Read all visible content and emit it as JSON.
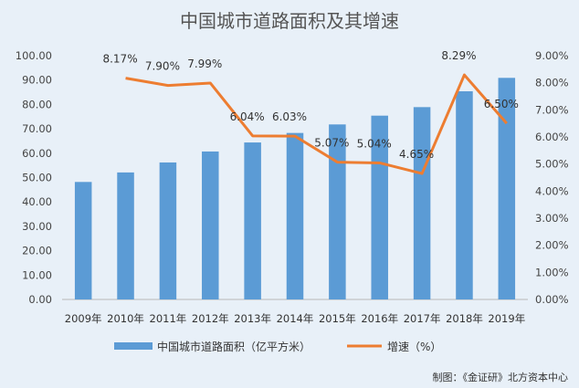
{
  "chart_data": {
    "type": "bar",
    "title": "中国城市道路面积及其增速",
    "categories": [
      "2009年",
      "2010年",
      "2011年",
      "2012年",
      "2013年",
      "2014年",
      "2015年",
      "2016年",
      "2017年",
      "2018年",
      "2019年"
    ],
    "series": [
      {
        "name": "中国城市道路面积（亿平方米）",
        "type": "bar",
        "axis": "left",
        "color": "#5b9bd5",
        "values": [
          48.2,
          52.1,
          56.2,
          60.7,
          64.4,
          68.3,
          71.8,
          75.4,
          78.9,
          85.4,
          90.9
        ]
      },
      {
        "name": "增速（%）",
        "type": "line",
        "axis": "right",
        "color": "#ed7d31",
        "values": [
          null,
          8.17,
          7.9,
          7.99,
          6.04,
          6.03,
          5.07,
          5.04,
          4.65,
          8.29,
          6.5
        ],
        "labels": [
          "",
          "8.17%",
          "7.90%",
          "7.99%",
          "6.04%",
          "6.03%",
          "5.07%",
          "5.04%",
          "4.65%",
          "8.29%",
          "6.50%"
        ]
      }
    ],
    "y_left": {
      "range": [
        0,
        100
      ],
      "ticks": [
        "0.00",
        "10.00",
        "20.00",
        "30.00",
        "40.00",
        "50.00",
        "60.00",
        "70.00",
        "80.00",
        "90.00",
        "100.00"
      ]
    },
    "y_right": {
      "range": [
        0,
        9
      ],
      "ticks": [
        "0.00%",
        "1.00%",
        "2.00%",
        "3.00%",
        "4.00%",
        "5.00%",
        "6.00%",
        "7.00%",
        "8.00%",
        "9.00%"
      ]
    },
    "legend": {
      "position": "bottom",
      "items": [
        "中国城市道路面积（亿平方米）",
        "增速（%）"
      ]
    },
    "grid": false
  },
  "credit": "制图：《金证研》北方资本中心",
  "colors": {
    "background": "#e8f0f8",
    "bar": "#5b9bd5",
    "line": "#ed7d31"
  }
}
